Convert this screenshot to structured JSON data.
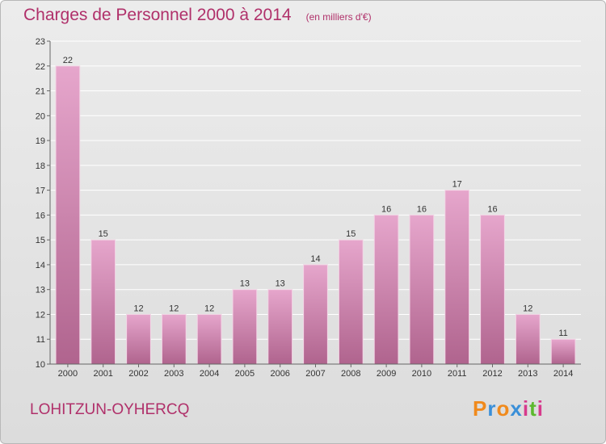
{
  "header": {
    "title": "Charges de Personnel 2000 à 2014",
    "subtitle": "(en milliers d'€)"
  },
  "footer": {
    "commune": "LOHITZUN-OYHERCQ",
    "brand_letters": [
      "P",
      "r",
      "o",
      "x",
      "i",
      "t",
      "i"
    ],
    "brand_colors": [
      "#f08a1c",
      "#3a8fd8",
      "#f08a1c",
      "#3a8fd8",
      "#d63a8c",
      "#5cb82e",
      "#d63a8c"
    ]
  },
  "colors": {
    "bar_top": "#e6a6cc",
    "bar_bottom": "#b0648e",
    "axis": "#666666",
    "grid": "#ffffff"
  },
  "chart_data": {
    "type": "bar",
    "categories": [
      "2000",
      "2001",
      "2002",
      "2003",
      "2004",
      "2005",
      "2006",
      "2007",
      "2008",
      "2009",
      "2010",
      "2011",
      "2012",
      "2013",
      "2014"
    ],
    "values": [
      22,
      15,
      12,
      12,
      12,
      13,
      13,
      14,
      15,
      16,
      16,
      17,
      16,
      12,
      11
    ],
    "yticks": [
      10,
      11,
      12,
      13,
      14,
      15,
      16,
      17,
      18,
      19,
      20,
      21,
      22,
      23
    ],
    "ylim": [
      10,
      23
    ],
    "grid": true,
    "title": "Charges de Personnel 2000 à 2014",
    "subtitle": "(en milliers d'€)"
  }
}
